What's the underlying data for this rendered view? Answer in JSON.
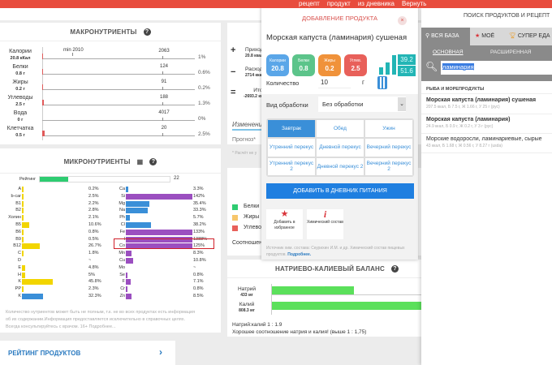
{
  "top_links": [
    "рецепт",
    "продукт",
    "из дневника",
    "Вернуть"
  ],
  "macro": {
    "title": "МАКРОНУТРИЕНТЫ",
    "min_label": "min 2010",
    "rows": [
      {
        "name": "Калории",
        "amount": "20.8 кКал",
        "norm": "2063",
        "pct": "1%",
        "fill": 1
      },
      {
        "name": "Белки",
        "amount": "0.8 г",
        "norm": "124",
        "pct": "0.6%",
        "fill": 0.6
      },
      {
        "name": "Жиры",
        "amount": "0.2 г",
        "norm": "91",
        "pct": "0.2%",
        "fill": 0.2
      },
      {
        "name": "Углеводы",
        "amount": "2.5 г",
        "norm": "188",
        "pct": "1.3%",
        "fill": 1.3
      },
      {
        "name": "Вода",
        "amount": "0 г",
        "norm": "4017",
        "pct": "0%",
        "fill": 0
      },
      {
        "name": "Клетчатка",
        "amount": "0.5 г",
        "norm": "20",
        "pct": "2.5%",
        "fill": 2.5
      }
    ]
  },
  "micro": {
    "title": "МИКРОНУТРИЕНТЫ",
    "rating_label": "Рейтинг",
    "rating_value": "22",
    "rating_fraction": 0.22,
    "left": [
      {
        "n": "A",
        "p": "0.2%",
        "v": 0.2,
        "c": "#f2d500"
      },
      {
        "n": "b-car",
        "p": "2.5%",
        "v": 2.5,
        "c": "#f2d500"
      },
      {
        "n": "B1",
        "p": "2.2%",
        "v": 2.2,
        "c": "#f2d500"
      },
      {
        "n": "B2",
        "p": "2.8%",
        "v": 2.8,
        "c": "#f2d500"
      },
      {
        "n": "Холин",
        "p": "2.1%",
        "v": 2.1,
        "c": "#f2d500"
      },
      {
        "n": "B5",
        "p": "10.6%",
        "v": 10.6,
        "c": "#f2d500"
      },
      {
        "n": "B6",
        "p": "0.8%",
        "v": 0.8,
        "c": "#f2d500"
      },
      {
        "n": "B9",
        "p": "0.5%",
        "v": 0.5,
        "c": "#f2d500"
      },
      {
        "n": "B12",
        "p": "26.7%",
        "v": 26.7,
        "c": "#f2d500"
      },
      {
        "n": "C",
        "p": "1.8%",
        "v": 1.8,
        "c": "#f2d500"
      },
      {
        "n": "D",
        "p": "~",
        "v": 0,
        "c": "#f2d500"
      },
      {
        "n": "E",
        "p": "4.8%",
        "v": 4.8,
        "c": "#f2d500"
      },
      {
        "n": "H",
        "p": "5%",
        "v": 5,
        "c": "#f2d500"
      },
      {
        "n": "K",
        "p": "45.8%",
        "v": 45.8,
        "c": "#f2d500"
      },
      {
        "n": "PP",
        "p": "2.3%",
        "v": 2.3,
        "c": "#f2d500"
      },
      {
        "n": "K",
        "p": "32.3%",
        "v": 32.3,
        "c": "#3a8fd8"
      }
    ],
    "right": [
      {
        "n": "Ca",
        "p": "3.3%",
        "v": 3.3,
        "c": "#3a8fd8"
      },
      {
        "n": "Si",
        "p": "142%",
        "v": 142,
        "c": "#9b4fc0"
      },
      {
        "n": "Mg",
        "p": "35.4%",
        "v": 35.4,
        "c": "#3a8fd8"
      },
      {
        "n": "Na",
        "p": "33.3%",
        "v": 33.3,
        "c": "#3a8fd8"
      },
      {
        "n": "Ph",
        "p": "5.7%",
        "v": 5.7,
        "c": "#3a8fd8"
      },
      {
        "n": "Cl",
        "p": "38.2%",
        "v": 38.2,
        "c": "#3a8fd8"
      },
      {
        "n": "Fe",
        "p": "133%",
        "v": 133,
        "c": "#9b4fc0"
      },
      {
        "n": "I",
        "p": "1388%",
        "v": 1388,
        "c": "#9b4fc0"
      },
      {
        "n": "Co",
        "p": "125%",
        "v": 125,
        "c": "#9b4fc0"
      },
      {
        "n": "Mn",
        "p": "8.3%",
        "v": 8.3,
        "c": "#9b4fc0"
      },
      {
        "n": "Cu",
        "p": "10.8%",
        "v": 10.8,
        "c": "#9b4fc0"
      },
      {
        "n": "Mo",
        "p": "~",
        "v": 0,
        "c": "#9b4fc0"
      },
      {
        "n": "Se",
        "p": "0.8%",
        "v": 0.8,
        "c": "#9b4fc0"
      },
      {
        "n": "F",
        "p": "7.1%",
        "v": 7.1,
        "c": "#9b4fc0"
      },
      {
        "n": "Cr",
        "p": "0.8%",
        "v": 0.8,
        "c": "#9b4fc0"
      },
      {
        "n": "Zn",
        "p": "8.5%",
        "v": 8.5,
        "c": "#9b4fc0"
      }
    ],
    "disclaimer": "Количество нутриентов может быть не полным, т.к. не во всех продуктах есть информация об их содержании.Информация предоставляется исключительно в справочных целях. Всегда консультируйтесь с врачом. 16+ Подробнее..."
  },
  "rating_products": "РЕЙТИНГ ПРОДУКТОВ",
  "middle": {
    "income": "Приход",
    "income_val": "20.8 ккал",
    "expense": "Расход",
    "expense_val": "2714 ккал",
    "total": "Итого",
    "total_val": "-2693.2 ккал",
    "changes": "Изменения",
    "forecast": "Прогноз*",
    "note": "* Расчёт не у",
    "legend": [
      "Белки",
      "Жиры",
      "Углеводы"
    ],
    "ratio": "Соотношение"
  },
  "modal": {
    "title": "ДОБАВЛЕНИЕ ПРОДУКТА",
    "product": "Морская капуста (ламинария) сушеная",
    "badges": [
      {
        "label": "Калории",
        "value": "20.8",
        "color": "#5aa6e8"
      },
      {
        "label": "Белки",
        "value": "0.8",
        "color": "#5cc48a"
      },
      {
        "label": "Жиры",
        "value": "0.2",
        "color": "#f0923a"
      },
      {
        "label": "Углев.",
        "value": "2.5",
        "color": "#e8605a"
      }
    ],
    "score_top": "39.2",
    "score_bottom": "51.6",
    "qty_label": "Количество",
    "qty_value": "10",
    "qty_unit": "г",
    "proc_label": "Вид обработки",
    "proc_value": "Без обработки",
    "meals": [
      "Завтрак",
      "Обед",
      "Ужин",
      "Утренний перекус",
      "Дневной перекус",
      "Вечерний перекус",
      "Утренний перекус 2",
      "Дневной перекус 2",
      "Вечерний перекус 2"
    ],
    "add_button": "ДОБАВИТЬ В ДНЕВНИК ПИТАНИЯ",
    "fav": "Добавить в избранное",
    "chem": "Химический состав",
    "source": "Источник хим. состава: Скурихин И.М. и др. Химический состав пищевых продуктов.",
    "more": "Подробнее."
  },
  "balance": {
    "title": "НАТРИЕВО-КАЛИЕВЫЙ БАЛАНС",
    "na": "Натрий",
    "na_val": "433 мг",
    "k": "Калий",
    "k_val": "808.3 мг",
    "na_fraction": 0.54,
    "k_fraction": 1,
    "ratio": "Натрий:калий 1 : 1.9",
    "msg": "Хорошее соотношение натрия и калия! (выше 1 : 1,75)"
  },
  "search": {
    "title": "ПОИСК ПРОДУКТОВ И РЕЦЕПТ",
    "tabs": [
      "ВСЯ БАЗА",
      "МОЁ",
      "СУПЕР ЕДА"
    ],
    "subtabs": [
      "ОСНОВНАЯ",
      "РАСШИРЕННАЯ"
    ],
    "query": "ламинария",
    "category": "РЫБА И МОРЕПРОДУКТЫ",
    "results": [
      {
        "name": "Морская капуста (ламинария) сушеная",
        "info": "207.5 ккал, Б 7.5 г, Ж 1.66 г, У 25 г (рус)"
      },
      {
        "name": "Морская капуста (ламинария)",
        "info": "24.9 ккал, Б 0.9 г, Ж 0.2 г, У 3 г (рус)"
      },
      {
        "name": "Морские водоросли, ламинариевые, сырые",
        "info": "43 ккал, Б 1.68 г, Ж 0.56 г, У 8.27 г (usda)"
      }
    ]
  }
}
